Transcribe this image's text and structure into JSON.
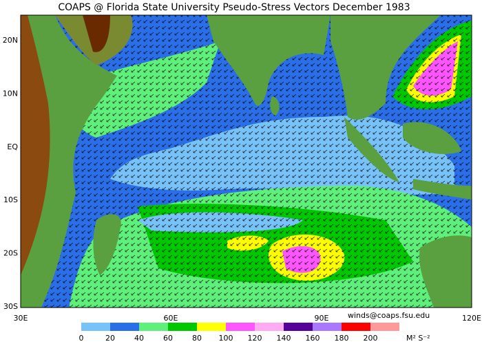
{
  "title": "COAPS @ Florida State University Pseudo-Stress Vectors  December 1983",
  "map": {
    "lat_labels": [
      "20N",
      "10N",
      "EQ",
      "10S",
      "20S",
      "30S"
    ],
    "lon_labels": [
      "30E",
      "60E",
      "90E",
      "120E"
    ]
  },
  "credit": "winds@coaps.fsu.edu",
  "colorbar": {
    "ticks": [
      0,
      20,
      40,
      60,
      80,
      100,
      120,
      140,
      160,
      180,
      200
    ],
    "colors": [
      "#77c2f8",
      "#2a6fe8",
      "#5ef07a",
      "#00c800",
      "#ffff00",
      "#ff55ff",
      "#ffaaf2",
      "#550099",
      "#aa77ff",
      "#ff0000",
      "#ff9999"
    ],
    "units": "M² S⁻²"
  }
}
